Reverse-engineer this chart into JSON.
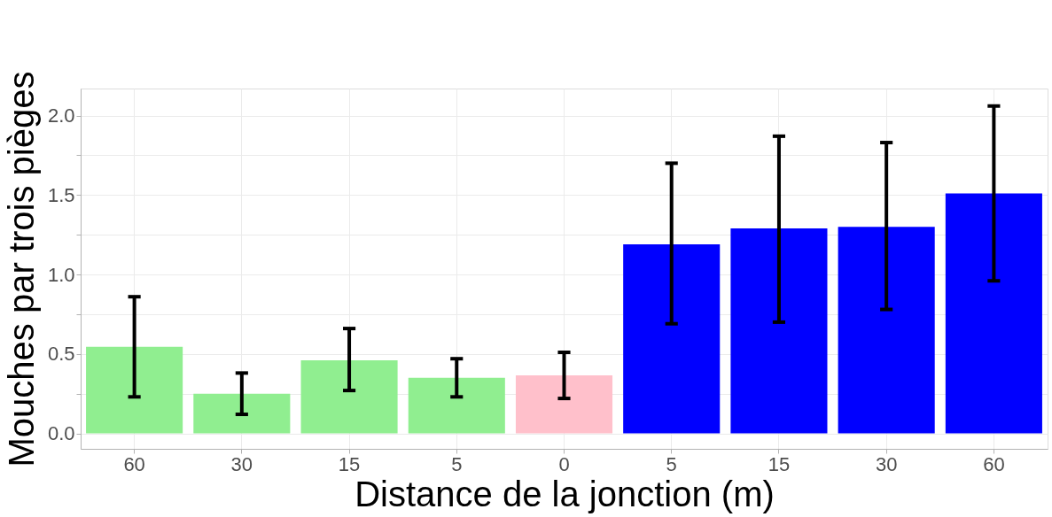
{
  "chart_data": {
    "type": "bar",
    "xlabel": "Distance de la jonction (m)",
    "ylabel": "Mouches par trois pièges",
    "categories": [
      "60",
      "30",
      "15",
      "5",
      "0",
      "5",
      "15",
      "30",
      "60"
    ],
    "values": [
      0.545,
      0.25,
      0.46,
      0.35,
      0.365,
      1.19,
      1.29,
      1.3,
      1.51
    ],
    "colors": [
      "#90ee90",
      "#90ee90",
      "#90ee90",
      "#90ee90",
      "#ffc0cb",
      "#0000ff",
      "#0000ff",
      "#0000ff",
      "#0000ff"
    ],
    "errors": [
      [
        0.23,
        0.86
      ],
      [
        0.12,
        0.38
      ],
      [
        0.27,
        0.66
      ],
      [
        0.23,
        0.47
      ],
      [
        0.22,
        0.51
      ],
      [
        0.69,
        1.7
      ],
      [
        0.7,
        1.87
      ],
      [
        0.78,
        1.83
      ],
      [
        0.96,
        2.06
      ]
    ],
    "ylim": [
      -0.097,
      2.17
    ],
    "yticks": [
      {
        "value": 0,
        "label": "0.0"
      },
      {
        "value": 0.25,
        "label": null
      },
      0.5,
      {
        "value": 0.75,
        "label": null
      },
      {
        "value": 1,
        "label": "1.0"
      },
      {
        "value": 1.25,
        "label": null
      },
      1.5,
      {
        "value": 1.75,
        "label": null
      },
      {
        "value": 2,
        "label": "2.0"
      }
    ],
    "grid": true
  }
}
